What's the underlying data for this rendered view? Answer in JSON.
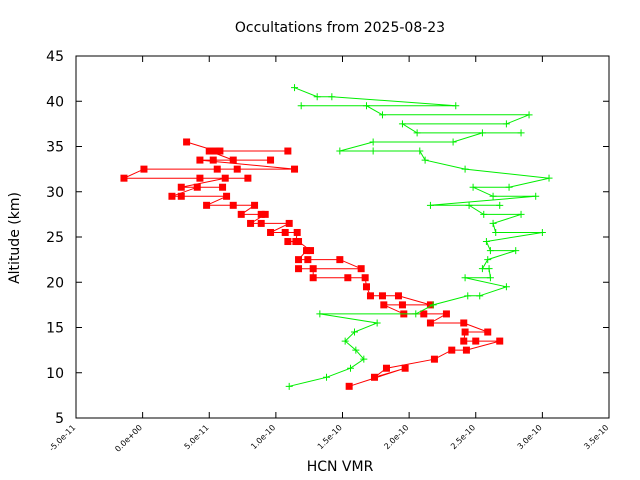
{
  "chart_data": {
    "type": "line",
    "title": "Occultations from 2025-08-23",
    "xlabel": "HCN VMR",
    "ylabel": "Altitude (km)",
    "xlim": [
      -5e-11,
      3.5e-10
    ],
    "ylim": [
      5,
      45
    ],
    "x_ticks": [
      -5e-11,
      0,
      5e-11,
      1e-10,
      1.5e-10,
      2e-10,
      2.5e-10,
      3e-10,
      3.5e-10
    ],
    "x_tick_labels": [
      "-5.0e-11",
      "0.0e+00",
      "5.0e-11",
      "1.0e-10",
      "1.5e-10",
      "2.0e-10",
      "2.5e-10",
      "3.0e-10",
      "3.5e-10"
    ],
    "y_ticks": [
      5,
      10,
      15,
      20,
      25,
      30,
      35,
      40,
      45
    ],
    "y_tick_labels": [
      "5",
      "10",
      "15",
      "20",
      "25",
      "30",
      "35",
      "40",
      "45"
    ],
    "grid": false,
    "legend": "none",
    "series": [
      {
        "color": "#ff0000",
        "marker": "square",
        "points": [
          [
            1.55e-10,
            8.5
          ],
          [
            1.97e-10,
            10.5
          ],
          [
            1.74e-10,
            9.5
          ],
          [
            1.83e-10,
            10.5
          ],
          [
            2.19e-10,
            11.5
          ],
          [
            2.32e-10,
            12.5
          ],
          [
            2.43e-10,
            12.5
          ],
          [
            2.68e-10,
            13.5
          ],
          [
            2.5e-10,
            13.5
          ],
          [
            2.41e-10,
            13.5
          ],
          [
            2.42e-10,
            14.5
          ],
          [
            2.59e-10,
            14.5
          ],
          [
            2.41e-10,
            15.5
          ],
          [
            2.16e-10,
            15.5
          ],
          [
            2.28e-10,
            16.5
          ],
          [
            2.11e-10,
            16.5
          ],
          [
            1.96e-10,
            16.5
          ],
          [
            1.81e-10,
            17.5
          ],
          [
            1.95e-10,
            17.5
          ],
          [
            2.16e-10,
            17.5
          ],
          [
            1.92e-10,
            18.5
          ],
          [
            1.8e-10,
            18.5
          ],
          [
            1.71e-10,
            18.5
          ],
          [
            1.68e-10,
            19.5
          ],
          [
            1.67e-10,
            20.5
          ],
          [
            1.54e-10,
            20.5
          ],
          [
            1.28e-10,
            20.5
          ],
          [
            1.28e-10,
            21.5
          ],
          [
            1.17e-10,
            21.5
          ],
          [
            1.64e-10,
            21.5
          ],
          [
            1.48e-10,
            22.5
          ],
          [
            1.24e-10,
            22.5
          ],
          [
            1.17e-10,
            22.5
          ],
          [
            1.23e-10,
            23.5
          ],
          [
            1.26e-10,
            23.5
          ],
          [
            1.17e-10,
            24.5
          ],
          [
            1.09e-10,
            24.5
          ],
          [
            1.15e-10,
            24.5
          ],
          [
            1.16e-10,
            25.5
          ],
          [
            1.07e-10,
            25.5
          ],
          [
            9.6e-11,
            25.5
          ],
          [
            1.1e-10,
            26.5
          ],
          [
            8.9e-11,
            26.5
          ],
          [
            8.1e-11,
            26.5
          ],
          [
            9.2e-11,
            27.5
          ],
          [
            8.9e-11,
            27.5
          ],
          [
            7.4e-11,
            27.5
          ],
          [
            8.4e-11,
            28.5
          ],
          [
            6.8e-11,
            28.5
          ],
          [
            4.8e-11,
            28.5
          ],
          [
            6.3e-11,
            29.5
          ],
          [
            2.9e-11,
            29.5
          ],
          [
            2.2e-11,
            29.5
          ],
          [
            4.1e-11,
            30.5
          ],
          [
            6e-11,
            30.5
          ],
          [
            2.9e-11,
            30.5
          ],
          [
            6.2e-11,
            31.5
          ],
          [
            7.9e-11,
            31.5
          ],
          [
            4.3e-11,
            31.5
          ],
          [
            -1.4e-11,
            31.5
          ],
          [
            1e-12,
            32.5
          ],
          [
            7.1e-11,
            32.5
          ],
          [
            5.6e-11,
            32.5
          ],
          [
            1.14e-10,
            32.5
          ],
          [
            4.3e-11,
            33.5
          ],
          [
            5.3e-11,
            33.5
          ],
          [
            9.6e-11,
            33.5
          ],
          [
            6.8e-11,
            33.5
          ],
          [
            5e-11,
            34.5
          ],
          [
            5.8e-11,
            34.5
          ],
          [
            1.09e-10,
            34.5
          ],
          [
            5.5e-11,
            34.5
          ],
          [
            3.3e-11,
            35.5
          ]
        ]
      },
      {
        "color": "#00ee00",
        "marker": "plus",
        "points": [
          [
            1.1e-10,
            8.5
          ],
          [
            1.38e-10,
            9.5
          ],
          [
            1.56e-10,
            10.5
          ],
          [
            1.66e-10,
            11.5
          ],
          [
            1.6e-10,
            12.5
          ],
          [
            1.52e-10,
            13.5
          ],
          [
            1.59e-10,
            14.5
          ],
          [
            1.76e-10,
            15.5
          ],
          [
            1.33e-10,
            16.5
          ],
          [
            2.05e-10,
            16.5
          ],
          [
            2.18e-10,
            17.5
          ],
          [
            2.44e-10,
            18.5
          ],
          [
            2.53e-10,
            18.5
          ],
          [
            2.73e-10,
            19.5
          ],
          [
            2.42e-10,
            20.5
          ],
          [
            2.61e-10,
            20.5
          ],
          [
            2.6e-10,
            21.5
          ],
          [
            2.55e-10,
            21.5
          ],
          [
            2.59e-10,
            22.5
          ],
          [
            2.8e-10,
            23.5
          ],
          [
            2.61e-10,
            23.5
          ],
          [
            2.58e-10,
            24.5
          ],
          [
            3e-10,
            25.5
          ],
          [
            2.65e-10,
            25.5
          ],
          [
            2.63e-10,
            26.5
          ],
          [
            2.84e-10,
            27.5
          ],
          [
            2.56e-10,
            27.5
          ],
          [
            2.45e-10,
            28.5
          ],
          [
            2.68e-10,
            28.5
          ],
          [
            2.16e-10,
            28.5
          ],
          [
            2.95e-10,
            29.5
          ],
          [
            2.63e-10,
            29.5
          ],
          [
            2.48e-10,
            30.5
          ],
          [
            2.75e-10,
            30.5
          ],
          [
            3.05e-10,
            31.5
          ],
          [
            2.42e-10,
            32.5
          ],
          [
            2.12e-10,
            33.5
          ],
          [
            2.08e-10,
            34.5
          ],
          [
            1.73e-10,
            34.5
          ],
          [
            1.48e-10,
            34.5
          ],
          [
            1.73e-10,
            35.5
          ],
          [
            2.33e-10,
            35.5
          ],
          [
            2.55e-10,
            36.5
          ],
          [
            2.84e-10,
            36.5
          ],
          [
            2.06e-10,
            36.5
          ],
          [
            1.95e-10,
            37.5
          ],
          [
            2.73e-10,
            37.5
          ],
          [
            2.9e-10,
            38.5
          ],
          [
            1.8e-10,
            38.5
          ],
          [
            1.68e-10,
            39.5
          ],
          [
            1.19e-10,
            39.5
          ],
          [
            2.35e-10,
            39.5
          ],
          [
            1.42e-10,
            40.5
          ],
          [
            1.31e-10,
            40.5
          ],
          [
            1.14e-10,
            41.5
          ]
        ]
      }
    ]
  }
}
